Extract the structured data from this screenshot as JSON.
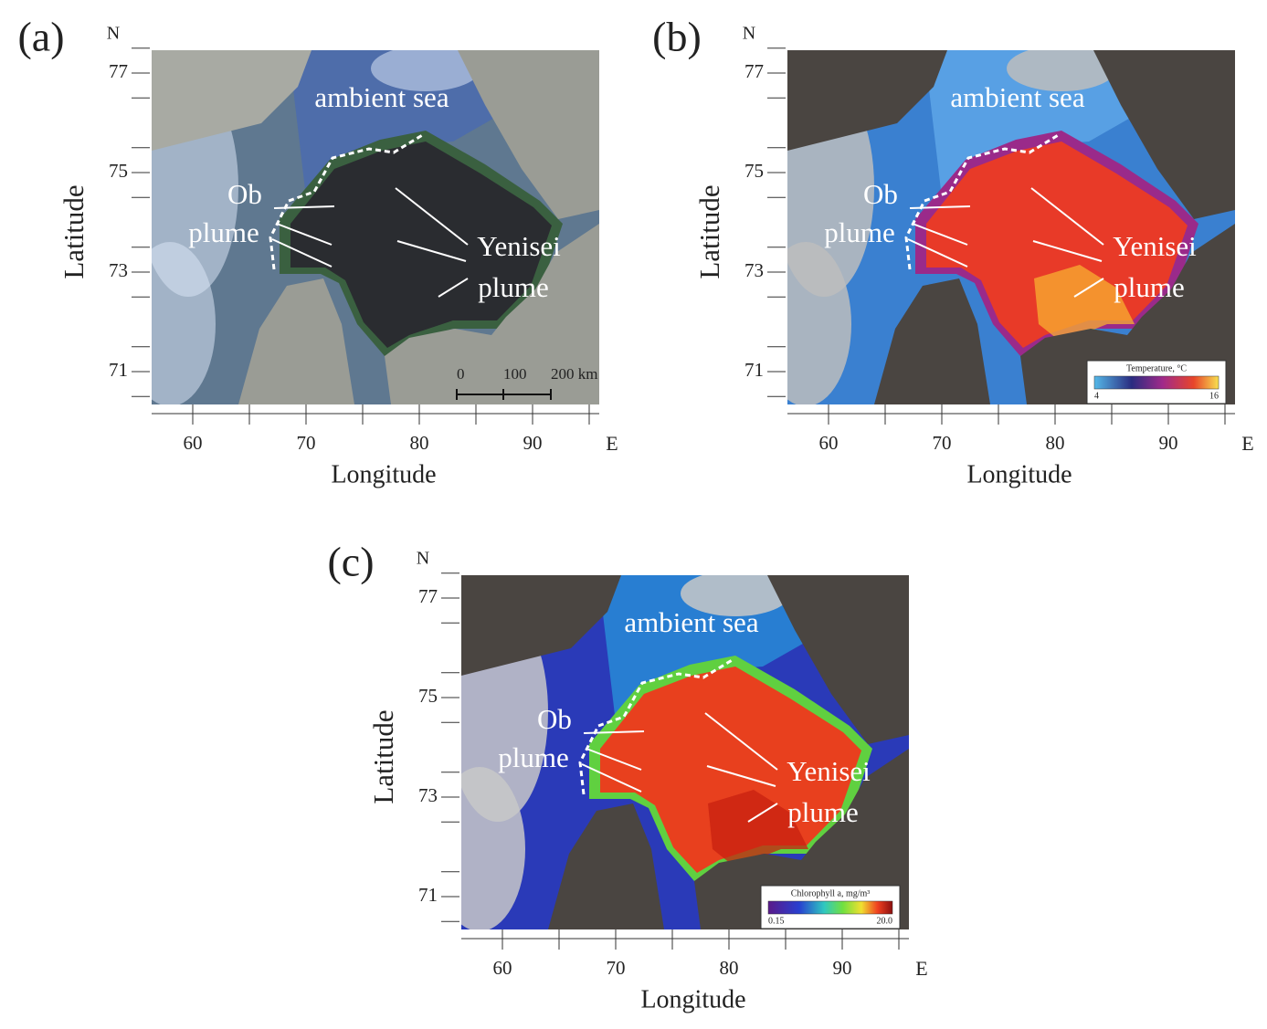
{
  "panels": [
    {
      "label": "(a)",
      "north": "N",
      "east": "E",
      "y_label": "Latitude",
      "x_label": "Longitude",
      "lat_ticks": [
        77,
        75,
        73,
        71
      ],
      "lon_ticks": [
        60,
        70,
        80,
        90
      ],
      "annotations": [
        "ambient sea",
        "Ob",
        "plume",
        "Yenisei",
        "plume"
      ],
      "scale_bar": [
        "0",
        "100",
        "200 km"
      ]
    },
    {
      "label": "(b)",
      "north": "N",
      "east": "E",
      "y_label": "Latitude",
      "x_label": "Longitude",
      "lat_ticks": [
        77,
        75,
        73,
        71
      ],
      "lon_ticks": [
        60,
        70,
        80,
        90
      ],
      "annotations": [
        "ambient sea",
        "Ob",
        "plume",
        "Yenisei",
        "plume"
      ],
      "colorbar": {
        "title": "Temperature, °C",
        "min": 4,
        "max": 16
      }
    },
    {
      "label": "(c)",
      "north": "N",
      "east": "E",
      "y_label": "Latitude",
      "x_label": "Longitude",
      "lat_ticks": [
        77,
        75,
        73,
        71
      ],
      "lon_ticks": [
        60,
        70,
        80,
        90
      ],
      "annotations": [
        "ambient sea",
        "Ob",
        "plume",
        "Yenisei",
        "plume"
      ],
      "colorbar": {
        "title": "Chlorophyll a, mg/m³",
        "min": 0.15,
        "max": "20.0"
      }
    }
  ]
}
